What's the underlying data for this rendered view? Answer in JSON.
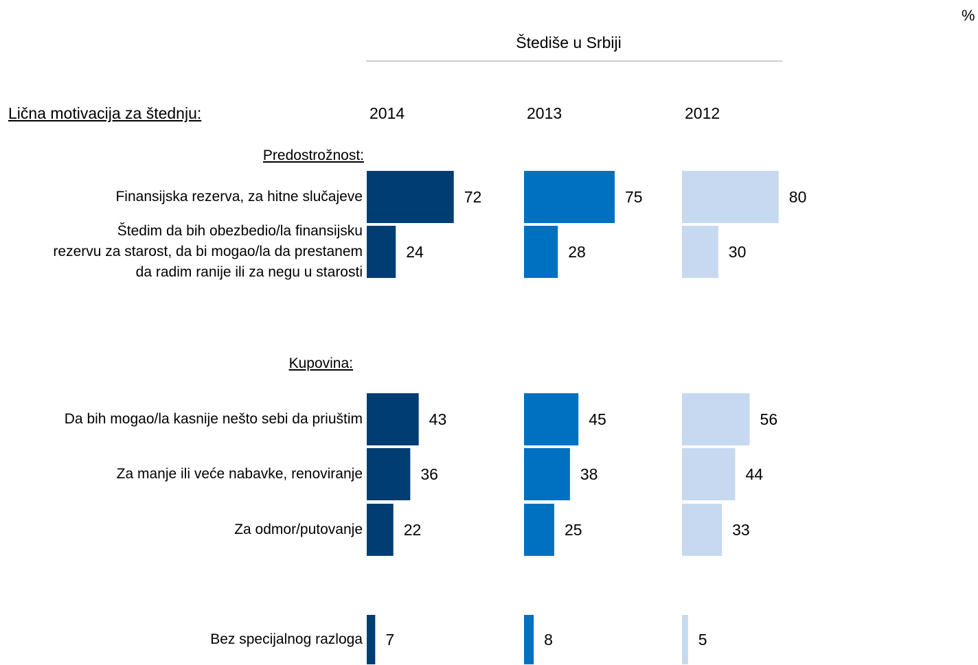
{
  "chart_data": {
    "type": "bar",
    "unit": "%",
    "title": "Štediše u Srbiji",
    "header": "Lična motivacija za štednju:",
    "groups": [
      "Predostrožnost:",
      "Kupovina:"
    ],
    "categories": [
      "Finansijska rezerva,  za hitne slučajeve",
      "Štedim da bih obezbedio/la finansijsku\nrezervu za starost, da bi mogao/la da prestanem\nda radim ranije ili za negu u starosti",
      "Da bih mogao/la kasnije nešto sebi da priuštim",
      "Za manje ili veće nabavke, renoviranje",
      "Za odmor/putovanje",
      "Bez specijalnog razloga"
    ],
    "series": [
      {
        "name": "2014",
        "color": "#003d73",
        "values": [
          72,
          24,
          43,
          36,
          22,
          7
        ]
      },
      {
        "name": "2013",
        "color": "#0070c0",
        "values": [
          75,
          28,
          45,
          38,
          25,
          8
        ]
      },
      {
        "name": "2012",
        "color": "#c6d9f1",
        "values": [
          80,
          30,
          56,
          44,
          33,
          5
        ]
      }
    ]
  }
}
